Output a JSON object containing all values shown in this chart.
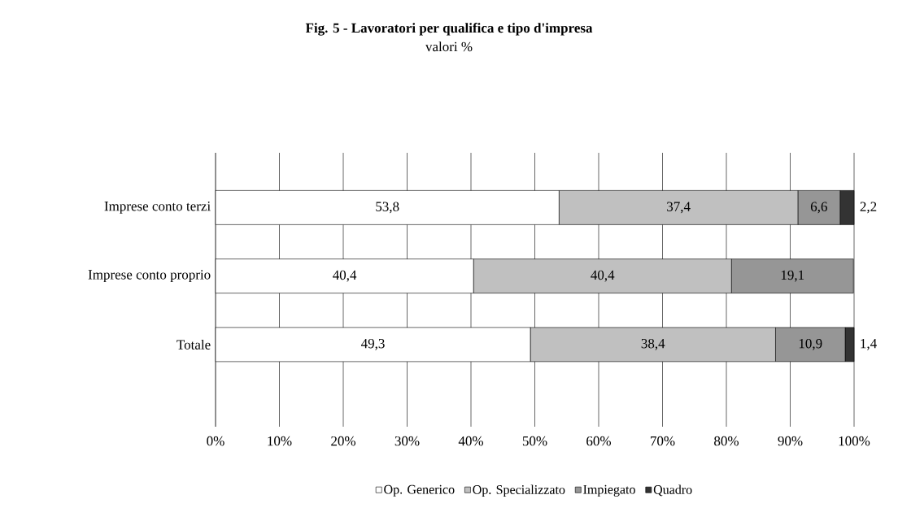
{
  "chart_data": {
    "type": "bar",
    "orientation": "horizontal",
    "stacked": true,
    "title": "Fig.  5 - Lavoratori per qualifica e tipo d'impresa",
    "subtitle": "valori %",
    "categories": [
      "Imprese conto terzi",
      "Imprese conto proprio",
      "Totale"
    ],
    "series": [
      {
        "name": "Op. Generico",
        "color": "#ffffff",
        "values": [
          53.8,
          40.4,
          49.3
        ],
        "value_labels": [
          "53,8",
          "40,4",
          "49,3"
        ]
      },
      {
        "name": "Op. Specializzato",
        "color": "#c0c0c0",
        "values": [
          37.4,
          40.4,
          38.4
        ],
        "value_labels": [
          "37,4",
          "40,4",
          "38,4"
        ]
      },
      {
        "name": "Impiegato",
        "color": "#969696",
        "values": [
          6.6,
          19.1,
          10.9
        ],
        "value_labels": [
          "6,6",
          "19,1",
          "10,9"
        ]
      },
      {
        "name": "Quadro",
        "color": "#333333",
        "values": [
          2.2,
          null,
          1.4
        ],
        "value_labels": [
          "2,2",
          null,
          "1,4"
        ]
      }
    ],
    "xlim": [
      0,
      100
    ],
    "xticks": [
      {
        "value": 0,
        "label": "0%"
      },
      {
        "value": 10,
        "label": "10%"
      },
      {
        "value": 20,
        "label": "20%"
      },
      {
        "value": 30,
        "label": "30%"
      },
      {
        "value": 40,
        "label": "40%"
      },
      {
        "value": 50,
        "label": "50%"
      },
      {
        "value": 60,
        "label": "60%"
      },
      {
        "value": 70,
        "label": "70%"
      },
      {
        "value": 80,
        "label": "80%"
      },
      {
        "value": 90,
        "label": "90%"
      },
      {
        "value": 100,
        "label": "100%"
      }
    ],
    "grid": "x",
    "legend": "bottom"
  }
}
